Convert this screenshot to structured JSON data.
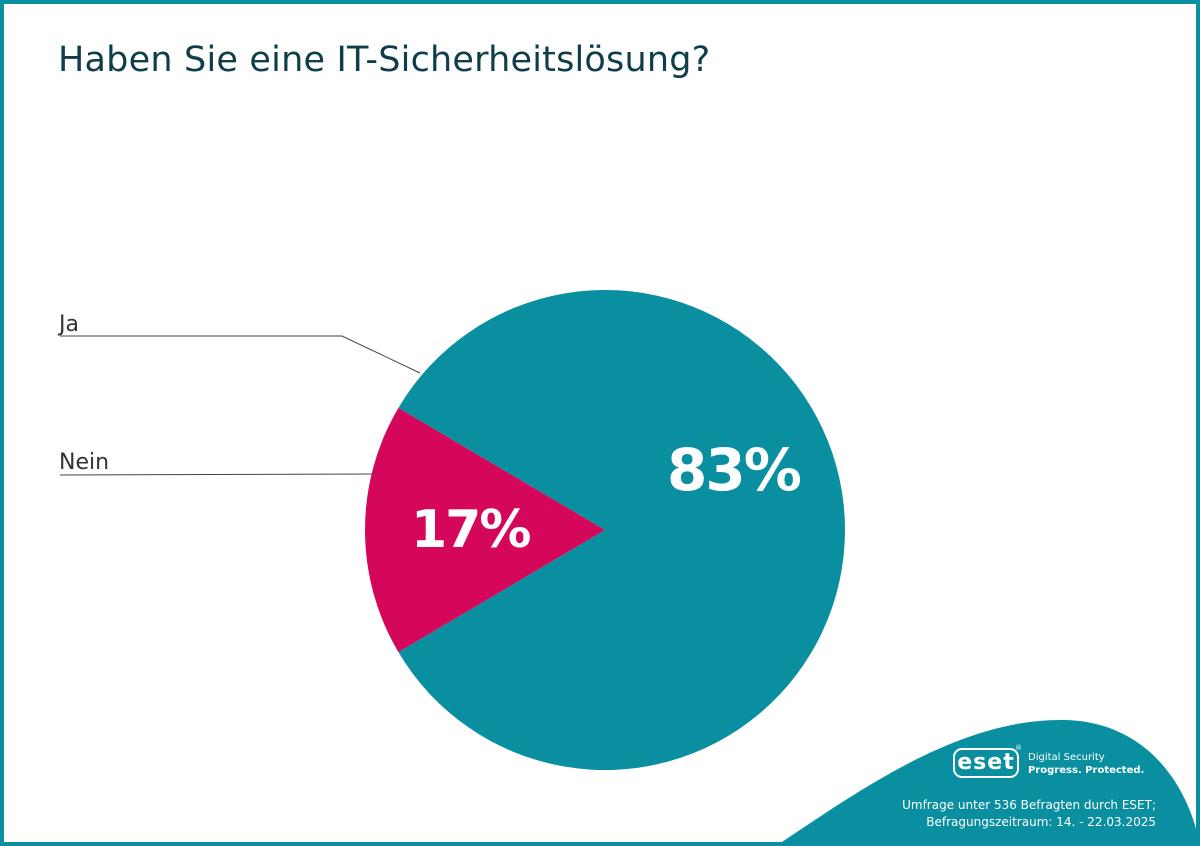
{
  "chart_data": {
    "type": "pie",
    "title": "Haben Sie eine IT-Sicherheitslösung?",
    "slices": [
      {
        "label": "Ja",
        "value": 83,
        "value_label": "83%",
        "color": "#0a8fa0"
      },
      {
        "label": "Nein",
        "value": 17,
        "value_label": "17%",
        "color": "#d4075a"
      }
    ]
  },
  "brand": {
    "logo": "eset",
    "tagline1": "Digital Security",
    "tagline2": "Progress. Protected."
  },
  "footnote": {
    "line1": "Umfrage unter 536 Befragten durch ESET;",
    "line2": "Befragungszeitraum: 14. - 22.03.2025"
  },
  "colors": {
    "frame": "#0a8fa0",
    "title": "#0f3e4a"
  }
}
